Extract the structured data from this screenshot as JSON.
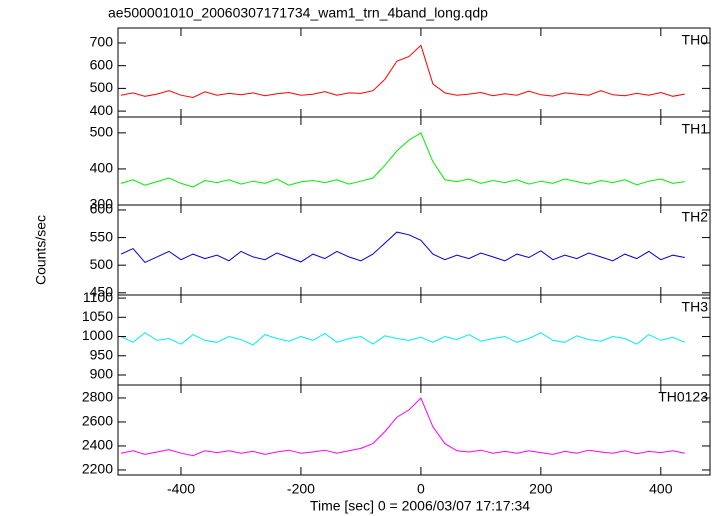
{
  "figure": {
    "title": "ae500001010_20060307171734_wam1_trn_4band_long.qdp",
    "xlabel": "Time [sec] 0 = 2006/03/07 17:17:34",
    "ylabel": "Counts/sec",
    "x": [
      -500,
      -480,
      -460,
      -440,
      -420,
      -400,
      -380,
      -360,
      -340,
      -320,
      -300,
      -280,
      -260,
      -240,
      -220,
      -200,
      -180,
      -160,
      -140,
      -120,
      -100,
      -80,
      -60,
      -40,
      -20,
      0,
      20,
      40,
      60,
      80,
      100,
      120,
      140,
      160,
      180,
      200,
      220,
      240,
      260,
      280,
      300,
      320,
      340,
      360,
      380,
      400,
      420,
      440
    ],
    "xlim": [
      -505,
      482
    ],
    "xticks": [
      -400,
      -200,
      0,
      200,
      400
    ]
  },
  "chart_data": [
    {
      "type": "line",
      "label": "TH0",
      "color": "#ff0000",
      "ylim": [
        374,
        766
      ],
      "yticks": [
        400,
        500,
        600,
        700
      ],
      "values": [
        470,
        480,
        465,
        475,
        490,
        470,
        460,
        485,
        470,
        478,
        472,
        480,
        468,
        476,
        482,
        470,
        474,
        486,
        470,
        480,
        478,
        490,
        540,
        620,
        640,
        690,
        520,
        480,
        470,
        475,
        482,
        468,
        476,
        470,
        488,
        472,
        466,
        480,
        475,
        470,
        490,
        472,
        468,
        478,
        470,
        482,
        465,
        475
      ]
    },
    {
      "type": "line",
      "label": "TH1",
      "color": "#00ee00",
      "ylim": [
        300,
        544
      ],
      "yticks": [
        300,
        400,
        500
      ],
      "values": [
        360,
        370,
        355,
        365,
        375,
        360,
        350,
        368,
        362,
        370,
        358,
        366,
        360,
        372,
        355,
        364,
        368,
        362,
        370,
        358,
        366,
        375,
        410,
        450,
        480,
        500,
        420,
        370,
        365,
        372,
        360,
        368,
        362,
        370,
        358,
        366,
        360,
        372,
        365,
        358,
        368,
        362,
        370,
        356,
        366,
        372,
        360,
        365
      ]
    },
    {
      "type": "line",
      "label": "TH2",
      "color": "#0000dd",
      "ylim": [
        446,
        609
      ],
      "yticks": [
        450,
        500,
        550,
        600
      ],
      "values": [
        520,
        530,
        505,
        515,
        525,
        510,
        520,
        512,
        518,
        508,
        525,
        515,
        510,
        522,
        514,
        506,
        520,
        512,
        525,
        515,
        508,
        520,
        540,
        560,
        555,
        545,
        520,
        510,
        518,
        512,
        522,
        515,
        508,
        520,
        514,
        526,
        510,
        518,
        512,
        522,
        515,
        508,
        520,
        512,
        525,
        510,
        518,
        514
      ]
    },
    {
      "type": "line",
      "label": "TH3",
      "color": "#00eeee",
      "ylim": [
        874,
        1108
      ],
      "yticks": [
        900,
        950,
        1000,
        1050,
        1100
      ],
      "values": [
        1000,
        985,
        1010,
        990,
        995,
        980,
        1005,
        990,
        985,
        1000,
        992,
        978,
        1005,
        995,
        988,
        1000,
        990,
        1008,
        985,
        995,
        1000,
        980,
        1002,
        995,
        990,
        998,
        985,
        1000,
        992,
        1005,
        988,
        995,
        1000,
        985,
        995,
        1010,
        990,
        985,
        1002,
        992,
        988,
        1000,
        995,
        980,
        1005,
        990,
        998,
        985
      ]
    },
    {
      "type": "line",
      "label": "TH0123",
      "color": "#ff00ff",
      "ylim": [
        2158,
        2908
      ],
      "yticks": [
        2200,
        2400,
        2600,
        2800
      ],
      "values": [
        2340,
        2360,
        2330,
        2350,
        2370,
        2340,
        2320,
        2360,
        2345,
        2360,
        2340,
        2355,
        2330,
        2350,
        2365,
        2340,
        2350,
        2365,
        2340,
        2360,
        2380,
        2420,
        2520,
        2640,
        2700,
        2800,
        2560,
        2420,
        2360,
        2350,
        2365,
        2340,
        2355,
        2340,
        2360,
        2345,
        2330,
        2355,
        2340,
        2365,
        2350,
        2340,
        2360,
        2335,
        2355,
        2345,
        2360,
        2340
      ]
    }
  ]
}
